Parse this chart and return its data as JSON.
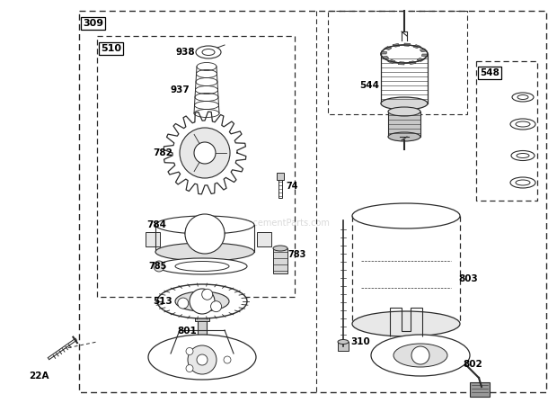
{
  "bg_color": "#ffffff",
  "line_color": "#2a2a2a",
  "watermark": "ReplacementParts.com"
}
